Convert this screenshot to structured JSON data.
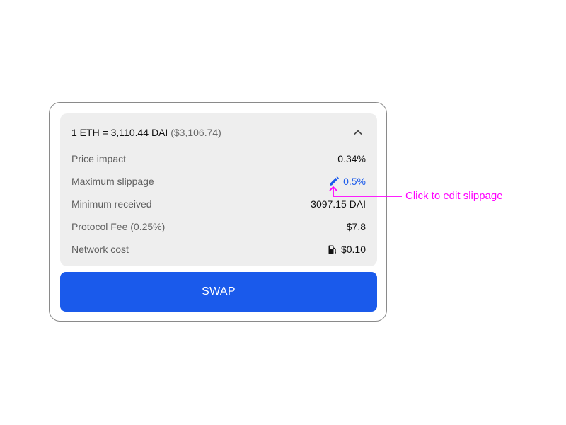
{
  "rate": {
    "main": "1 ETH = 3,110.44 DAI",
    "usd": "($3,106.74)",
    "toggle_icon": "chevron-up-icon"
  },
  "rows": [
    {
      "label": "Price impact",
      "value": "0.34%"
    },
    {
      "label": "Maximum slippage",
      "value": "0.5%",
      "icon": "pencil-icon"
    },
    {
      "label": "Minimum received",
      "value": "3097.15 DAI"
    },
    {
      "label": "Protocol Fee (0.25%)",
      "value": "$7.8"
    },
    {
      "label": "Network cost",
      "value": "$0.10",
      "icon": "gas-pump-icon"
    }
  ],
  "swap_label": "SWAP",
  "annotation": "Click to edit slippage",
  "colors": {
    "accent": "#1a5aeb",
    "annotation": "#ff00ff",
    "panel": "#eeeeee"
  }
}
